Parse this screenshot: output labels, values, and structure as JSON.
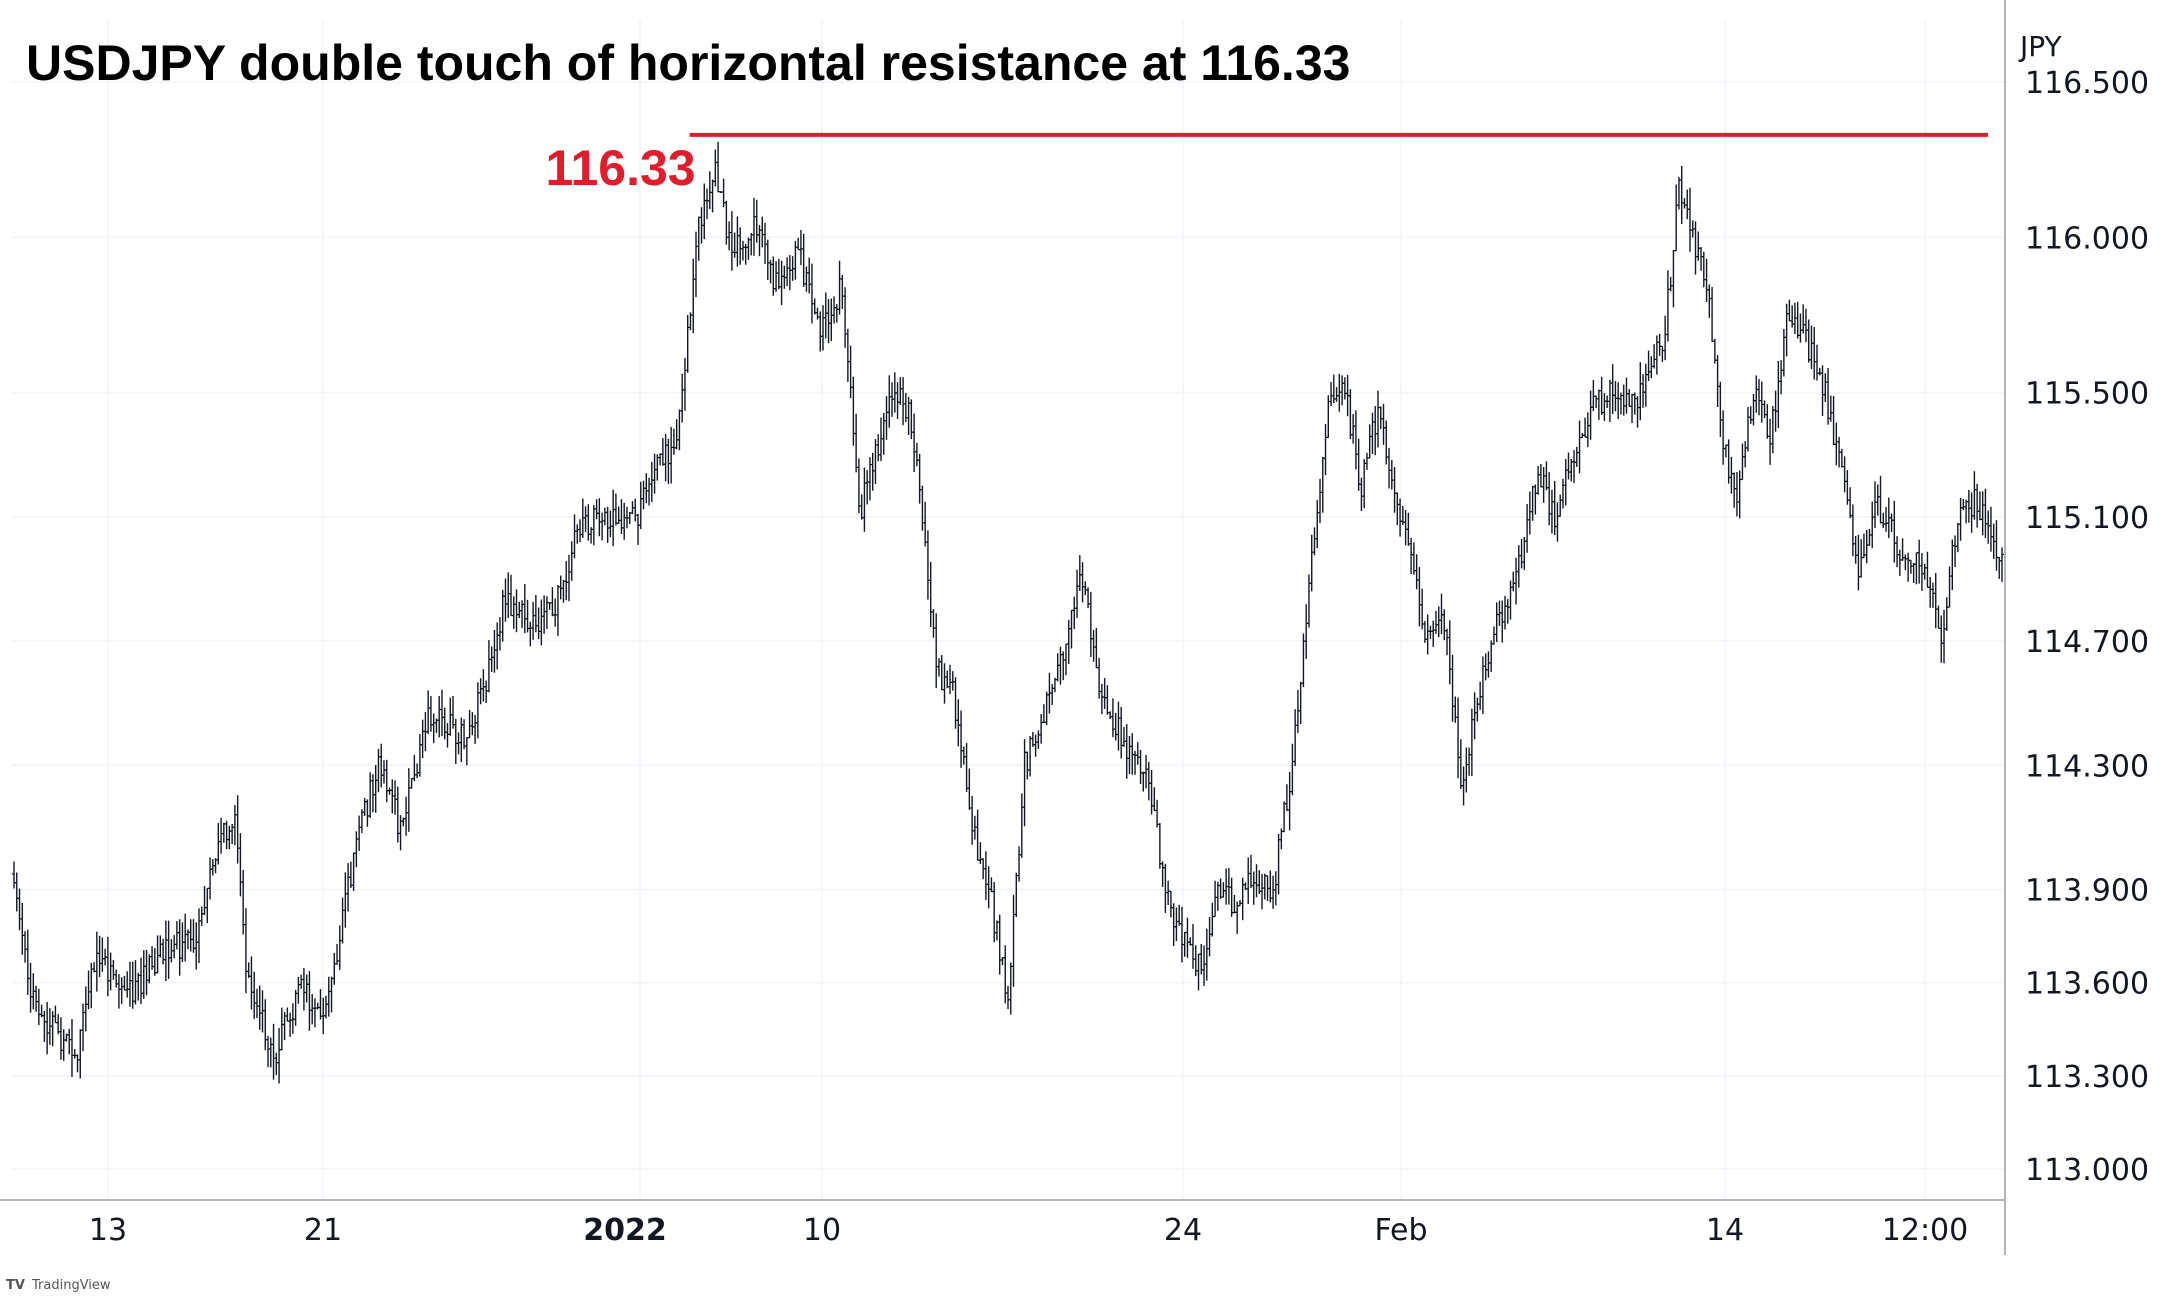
{
  "chart_data": {
    "type": "ohlc",
    "title": "USDJPY double touch of horizontal resistance at 116.33",
    "currency_label": "JPY",
    "ylim": [
      112.9,
      116.7
    ],
    "y_ticks": [
      {
        "value": 116.5,
        "label": "116.500"
      },
      {
        "value": 116.0,
        "label": "116.000"
      },
      {
        "value": 115.5,
        "label": "115.500"
      },
      {
        "value": 115.1,
        "label": "115.100"
      },
      {
        "value": 114.7,
        "label": "114.700"
      },
      {
        "value": 114.3,
        "label": "114.300"
      },
      {
        "value": 113.9,
        "label": "113.900"
      },
      {
        "value": 113.6,
        "label": "113.600"
      },
      {
        "value": 113.3,
        "label": "113.300"
      },
      {
        "value": 113.0,
        "label": "113.000"
      }
    ],
    "x_ticks": [
      {
        "label": "13",
        "bold": false
      },
      {
        "label": "21",
        "bold": false
      },
      {
        "label": "2022",
        "bold": true
      },
      {
        "label": "10",
        "bold": false
      },
      {
        "label": "24",
        "bold": false
      },
      {
        "label": "Feb",
        "bold": false
      },
      {
        "label": "14",
        "bold": false
      },
      {
        "label": "12:00",
        "bold": false
      }
    ],
    "anchors": [
      [
        0,
        113.95
      ],
      [
        6,
        113.55
      ],
      [
        14,
        113.45
      ],
      [
        22,
        113.35
      ],
      [
        30,
        113.7
      ],
      [
        40,
        113.55
      ],
      [
        55,
        113.7
      ],
      [
        66,
        113.75
      ],
      [
        74,
        114.05
      ],
      [
        80,
        114.15
      ],
      [
        84,
        113.65
      ],
      [
        94,
        113.35
      ],
      [
        104,
        113.6
      ],
      [
        112,
        113.45
      ],
      [
        118,
        113.75
      ],
      [
        124,
        114.05
      ],
      [
        132,
        114.3
      ],
      [
        140,
        114.1
      ],
      [
        150,
        114.45
      ],
      [
        164,
        114.4
      ],
      [
        172,
        114.6
      ],
      [
        178,
        114.85
      ],
      [
        186,
        114.75
      ],
      [
        196,
        114.8
      ],
      [
        204,
        115.05
      ],
      [
        212,
        115.1
      ],
      [
        226,
        115.1
      ],
      [
        232,
        115.25
      ],
      [
        240,
        115.35
      ],
      [
        248,
        116.05
      ],
      [
        254,
        116.2
      ],
      [
        260,
        115.95
      ],
      [
        268,
        116.05
      ],
      [
        276,
        115.85
      ],
      [
        284,
        115.95
      ],
      [
        292,
        115.7
      ],
      [
        300,
        115.85
      ],
      [
        306,
        115.1
      ],
      [
        312,
        115.3
      ],
      [
        318,
        115.5
      ],
      [
        324,
        115.45
      ],
      [
        328,
        115.2
      ],
      [
        334,
        114.6
      ],
      [
        340,
        114.55
      ],
      [
        346,
        114.15
      ],
      [
        354,
        113.85
      ],
      [
        360,
        113.55
      ],
      [
        366,
        114.3
      ],
      [
        372,
        114.45
      ],
      [
        380,
        114.65
      ],
      [
        386,
        114.95
      ],
      [
        392,
        114.6
      ],
      [
        398,
        114.45
      ],
      [
        404,
        114.35
      ],
      [
        410,
        114.3
      ],
      [
        416,
        113.95
      ],
      [
        422,
        113.75
      ],
      [
        430,
        113.65
      ],
      [
        436,
        113.9
      ],
      [
        442,
        113.85
      ],
      [
        448,
        113.95
      ],
      [
        456,
        113.9
      ],
      [
        462,
        114.25
      ],
      [
        470,
        114.95
      ],
      [
        476,
        115.45
      ],
      [
        482,
        115.5
      ],
      [
        488,
        115.2
      ],
      [
        494,
        115.45
      ],
      [
        500,
        115.2
      ],
      [
        506,
        114.95
      ],
      [
        512,
        114.7
      ],
      [
        518,
        114.75
      ],
      [
        524,
        114.25
      ],
      [
        530,
        114.5
      ],
      [
        536,
        114.75
      ],
      [
        544,
        114.9
      ],
      [
        552,
        115.25
      ],
      [
        558,
        115.1
      ],
      [
        566,
        115.35
      ],
      [
        572,
        115.45
      ],
      [
        580,
        115.5
      ],
      [
        586,
        115.45
      ],
      [
        592,
        115.55
      ],
      [
        598,
        115.7
      ],
      [
        603,
        116.15
      ],
      [
        608,
        116.0
      ],
      [
        614,
        115.8
      ],
      [
        619,
        115.35
      ],
      [
        624,
        115.15
      ],
      [
        630,
        115.5
      ],
      [
        636,
        115.35
      ],
      [
        642,
        115.75
      ],
      [
        650,
        115.65
      ],
      [
        656,
        115.5
      ],
      [
        662,
        115.25
      ],
      [
        668,
        114.9
      ],
      [
        674,
        115.15
      ],
      [
        680,
        115.05
      ],
      [
        686,
        114.95
      ],
      [
        692,
        114.95
      ],
      [
        698,
        114.7
      ],
      [
        704,
        115.1
      ],
      [
        710,
        115.15
      ],
      [
        716,
        115.05
      ],
      [
        720,
        114.95
      ]
    ],
    "resistance": {
      "value": 116.33,
      "label": "116.33",
      "color": "#e01e2b",
      "start_fraction": 0.34
    },
    "colors": {
      "bars": "#131722",
      "grid": "#f0f3fa",
      "axis": "#b2b5be",
      "resistance": "#e01e2b"
    },
    "watermark": "TradingView"
  }
}
